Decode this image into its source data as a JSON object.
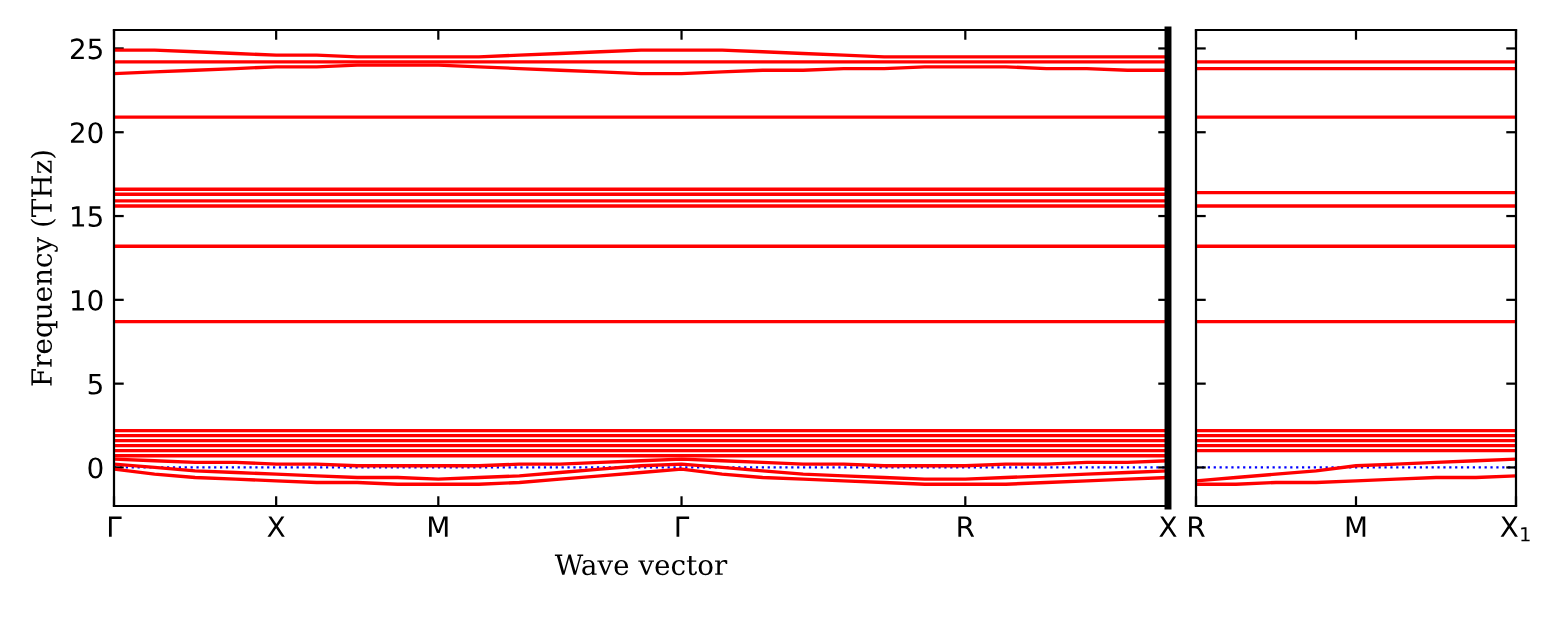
{
  "chart_data": [
    {
      "type": "line",
      "xlabel": "Wave vector",
      "ylabel": "Frequency (THz)",
      "categories": [
        "Γ",
        null,
        null,
        null,
        "X",
        null,
        null,
        null,
        "M",
        null,
        null,
        null,
        null,
        null,
        "Γ",
        null,
        null,
        null,
        null,
        null,
        null,
        "R",
        null,
        null,
        null,
        null,
        "X"
      ],
      "ylim": [
        -2.3,
        26.1
      ],
      "yticks": [
        0,
        5,
        10,
        15,
        20,
        25
      ],
      "line_style": "solid",
      "ref_lines": [
        {
          "axis": "y",
          "value": 0,
          "color": "#0000ff",
          "line_style": "dotted"
        }
      ],
      "series": [
        {
          "color": "#ff0000",
          "values": [
            -0.1,
            -0.4,
            -0.6,
            -0.7,
            -0.8,
            -0.9,
            -0.9,
            -1.0,
            -1.0,
            -1.0,
            -0.9,
            -0.7,
            -0.5,
            -0.3,
            -0.1,
            -0.4,
            -0.6,
            -0.7,
            -0.8,
            -0.9,
            -1.0,
            -1.0,
            -1.0,
            -0.9,
            -0.8,
            -0.7,
            -0.6
          ]
        },
        {
          "color": "#ff0000",
          "values": [
            0.2,
            0,
            -0.2,
            -0.3,
            -0.4,
            -0.5,
            -0.6,
            -0.6,
            -0.7,
            -0.6,
            -0.5,
            -0.3,
            -0.1,
            0.1,
            0.2,
            0,
            -0.2,
            -0.4,
            -0.5,
            -0.6,
            -0.7,
            -0.7,
            -0.6,
            -0.5,
            -0.4,
            -0.3,
            -0.2
          ]
        },
        {
          "color": "#ff0000",
          "values": [
            0.5,
            0.4,
            0.3,
            0.3,
            0.2,
            0.2,
            0.1,
            0.1,
            0.1,
            0.1,
            0.2,
            0.2,
            0.3,
            0.4,
            0.5,
            0.4,
            0.3,
            0.2,
            0.2,
            0.1,
            0.1,
            0.1,
            0.2,
            0.2,
            0.3,
            0.3,
            0.4
          ]
        },
        {
          "color": "#ff0000",
          "values": [
            0.7,
            0.7,
            0.7,
            0.7,
            0.7,
            0.7,
            0.7,
            0.7,
            0.7,
            0.7,
            0.7,
            0.7,
            0.7,
            0.7,
            0.7,
            0.7,
            0.7,
            0.7,
            0.7,
            0.7,
            0.7,
            0.7,
            0.7,
            0.7,
            0.7,
            0.7,
            0.7
          ]
        },
        {
          "color": "#ff0000",
          "values": [
            1.0,
            1.0,
            1.0,
            1.0,
            1.0,
            1.0,
            1.0,
            1.0,
            1.0,
            1.0,
            1.0,
            1.0,
            1.0,
            1.0,
            1.0,
            1.0,
            1.0,
            1.0,
            1.0,
            1.0,
            1.0,
            1.0,
            1.0,
            1.0,
            1.0,
            1.0,
            1.0
          ]
        },
        {
          "color": "#ff0000",
          "values": [
            1.3,
            1.3,
            1.3,
            1.3,
            1.3,
            1.3,
            1.3,
            1.3,
            1.3,
            1.3,
            1.3,
            1.3,
            1.3,
            1.3,
            1.3,
            1.3,
            1.3,
            1.3,
            1.3,
            1.3,
            1.3,
            1.3,
            1.3,
            1.3,
            1.3,
            1.3,
            1.3
          ]
        },
        {
          "color": "#ff0000",
          "values": [
            1.6,
            1.6,
            1.6,
            1.6,
            1.6,
            1.6,
            1.6,
            1.6,
            1.6,
            1.6,
            1.6,
            1.6,
            1.6,
            1.6,
            1.6,
            1.6,
            1.6,
            1.6,
            1.6,
            1.6,
            1.6,
            1.6,
            1.6,
            1.6,
            1.6,
            1.6,
            1.6
          ]
        },
        {
          "color": "#ff0000",
          "values": [
            1.9,
            1.9,
            1.9,
            1.9,
            1.9,
            1.9,
            1.9,
            1.9,
            1.9,
            1.9,
            1.9,
            1.9,
            1.9,
            1.9,
            1.9,
            1.9,
            1.9,
            1.9,
            1.9,
            1.9,
            1.9,
            1.9,
            1.9,
            1.9,
            1.9,
            1.9,
            1.9
          ]
        },
        {
          "color": "#ff0000",
          "values": [
            2.2,
            2.2,
            2.2,
            2.2,
            2.2,
            2.2,
            2.2,
            2.2,
            2.2,
            2.2,
            2.2,
            2.2,
            2.2,
            2.2,
            2.2,
            2.2,
            2.2,
            2.2,
            2.2,
            2.2,
            2.2,
            2.2,
            2.2,
            2.2,
            2.2,
            2.2,
            2.2
          ]
        },
        {
          "color": "#ff0000",
          "values": [
            8.7,
            8.7,
            8.7,
            8.7,
            8.7,
            8.7,
            8.7,
            8.7,
            8.7,
            8.7,
            8.7,
            8.7,
            8.7,
            8.7,
            8.7,
            8.7,
            8.7,
            8.7,
            8.7,
            8.7,
            8.7,
            8.7,
            8.7,
            8.7,
            8.7,
            8.7,
            8.7
          ]
        },
        {
          "color": "#ff0000",
          "values": [
            13.2,
            13.2,
            13.2,
            13.2,
            13.2,
            13.2,
            13.2,
            13.2,
            13.2,
            13.2,
            13.2,
            13.2,
            13.2,
            13.2,
            13.2,
            13.2,
            13.2,
            13.2,
            13.2,
            13.2,
            13.2,
            13.2,
            13.2,
            13.2,
            13.2,
            13.2,
            13.2
          ]
        },
        {
          "color": "#ff0000",
          "values": [
            15.6,
            15.6,
            15.6,
            15.6,
            15.6,
            15.6,
            15.6,
            15.6,
            15.6,
            15.6,
            15.6,
            15.6,
            15.6,
            15.6,
            15.6,
            15.6,
            15.6,
            15.6,
            15.6,
            15.6,
            15.6,
            15.6,
            15.6,
            15.6,
            15.6,
            15.6,
            15.6
          ]
        },
        {
          "color": "#ff0000",
          "values": [
            15.9,
            15.9,
            15.9,
            15.9,
            15.9,
            15.9,
            15.9,
            15.9,
            15.9,
            15.9,
            15.9,
            15.9,
            15.9,
            15.9,
            15.9,
            15.9,
            15.9,
            15.9,
            15.9,
            15.9,
            15.9,
            15.9,
            15.9,
            15.9,
            15.9,
            15.9,
            15.9
          ]
        },
        {
          "color": "#ff0000",
          "values": [
            16.3,
            16.3,
            16.3,
            16.3,
            16.3,
            16.3,
            16.3,
            16.3,
            16.3,
            16.3,
            16.3,
            16.3,
            16.3,
            16.3,
            16.3,
            16.3,
            16.3,
            16.3,
            16.3,
            16.3,
            16.3,
            16.3,
            16.3,
            16.3,
            16.3,
            16.3,
            16.3
          ]
        },
        {
          "color": "#ff0000",
          "values": [
            16.6,
            16.6,
            16.6,
            16.6,
            16.6,
            16.6,
            16.6,
            16.6,
            16.6,
            16.6,
            16.6,
            16.6,
            16.6,
            16.6,
            16.6,
            16.6,
            16.6,
            16.6,
            16.6,
            16.6,
            16.6,
            16.6,
            16.6,
            16.6,
            16.6,
            16.6,
            16.6
          ]
        },
        {
          "color": "#ff0000",
          "values": [
            20.9,
            20.9,
            20.9,
            20.9,
            20.9,
            20.9,
            20.9,
            20.9,
            20.9,
            20.9,
            20.9,
            20.9,
            20.9,
            20.9,
            20.9,
            20.9,
            20.9,
            20.9,
            20.9,
            20.9,
            20.9,
            20.9,
            20.9,
            20.9,
            20.9,
            20.9,
            20.9
          ]
        },
        {
          "color": "#ff0000",
          "values": [
            23.5,
            23.6,
            23.7,
            23.8,
            23.9,
            23.9,
            24.0,
            24.0,
            24.0,
            23.9,
            23.8,
            23.7,
            23.6,
            23.5,
            23.5,
            23.6,
            23.7,
            23.7,
            23.8,
            23.8,
            23.9,
            23.9,
            23.9,
            23.8,
            23.8,
            23.7,
            23.7
          ]
        },
        {
          "color": "#ff0000",
          "values": [
            24.2,
            24.2,
            24.2,
            24.2,
            24.2,
            24.2,
            24.2,
            24.2,
            24.2,
            24.2,
            24.2,
            24.2,
            24.2,
            24.2,
            24.2,
            24.2,
            24.2,
            24.2,
            24.2,
            24.2,
            24.2,
            24.2,
            24.2,
            24.2,
            24.2,
            24.2,
            24.2
          ]
        },
        {
          "color": "#ff0000",
          "values": [
            24.9,
            24.9,
            24.8,
            24.7,
            24.6,
            24.6,
            24.5,
            24.5,
            24.5,
            24.5,
            24.6,
            24.7,
            24.8,
            24.9,
            24.9,
            24.9,
            24.8,
            24.7,
            24.6,
            24.5,
            24.5,
            24.5,
            24.5,
            24.5,
            24.5,
            24.5,
            24.5
          ]
        }
      ]
    },
    {
      "type": "line",
      "categories": [
        "R",
        null,
        null,
        null,
        "M",
        null,
        null,
        null,
        "X$_{1}$"
      ],
      "ylim": [
        -2.3,
        26.1
      ],
      "yticks": [
        0,
        5,
        10,
        15,
        20,
        25
      ],
      "tick_labels": "x",
      "line_style": "solid",
      "ref_lines": [
        {
          "axis": "y",
          "value": 0,
          "color": "#0000ff",
          "line_style": "dotted"
        }
      ],
      "series": [
        {
          "color": "#ff0000",
          "values": [
            -1.0,
            -1.0,
            -0.9,
            -0.9,
            -0.8,
            -0.7,
            -0.6,
            -0.6,
            -0.5
          ]
        },
        {
          "color": "#ff0000",
          "values": [
            -0.8,
            -0.6,
            -0.4,
            -0.2,
            0.1,
            0.2,
            0.3,
            0.4,
            0.5
          ]
        },
        {
          "color": "#ff0000",
          "values": [
            1.0,
            1.0,
            1.0,
            1.0,
            1.0,
            1.0,
            1.0,
            1.0,
            1.0
          ]
        },
        {
          "color": "#ff0000",
          "values": [
            1.3,
            1.3,
            1.3,
            1.3,
            1.3,
            1.3,
            1.3,
            1.3,
            1.3
          ]
        },
        {
          "color": "#ff0000",
          "values": [
            1.6,
            1.6,
            1.6,
            1.6,
            1.6,
            1.6,
            1.6,
            1.6,
            1.6
          ]
        },
        {
          "color": "#ff0000",
          "values": [
            1.9,
            1.9,
            1.9,
            1.9,
            1.9,
            1.9,
            1.9,
            1.9,
            1.9
          ]
        },
        {
          "color": "#ff0000",
          "values": [
            2.2,
            2.2,
            2.2,
            2.2,
            2.2,
            2.2,
            2.2,
            2.2,
            2.2
          ]
        },
        {
          "color": "#ff0000",
          "values": [
            8.7,
            8.7,
            8.7,
            8.7,
            8.7,
            8.7,
            8.7,
            8.7,
            8.7
          ]
        },
        {
          "color": "#ff0000",
          "values": [
            13.2,
            13.2,
            13.2,
            13.2,
            13.2,
            13.2,
            13.2,
            13.2,
            13.2
          ]
        },
        {
          "color": "#ff0000",
          "values": [
            15.6,
            15.6,
            15.6,
            15.6,
            15.6,
            15.6,
            15.6,
            15.6,
            15.6
          ]
        },
        {
          "color": "#ff0000",
          "values": [
            16.4,
            16.4,
            16.4,
            16.4,
            16.4,
            16.4,
            16.4,
            16.4,
            16.4
          ]
        },
        {
          "color": "#ff0000",
          "values": [
            20.9,
            20.9,
            20.9,
            20.9,
            20.9,
            20.9,
            20.9,
            20.9,
            20.9
          ]
        },
        {
          "color": "#ff0000",
          "values": [
            23.8,
            23.8,
            23.8,
            23.8,
            23.8,
            23.8,
            23.8,
            23.8,
            23.8
          ]
        },
        {
          "color": "#ff0000",
          "values": [
            24.2,
            24.2,
            24.2,
            24.2,
            24.2,
            24.2,
            24.2,
            24.2,
            24.2
          ]
        }
      ]
    }
  ]
}
